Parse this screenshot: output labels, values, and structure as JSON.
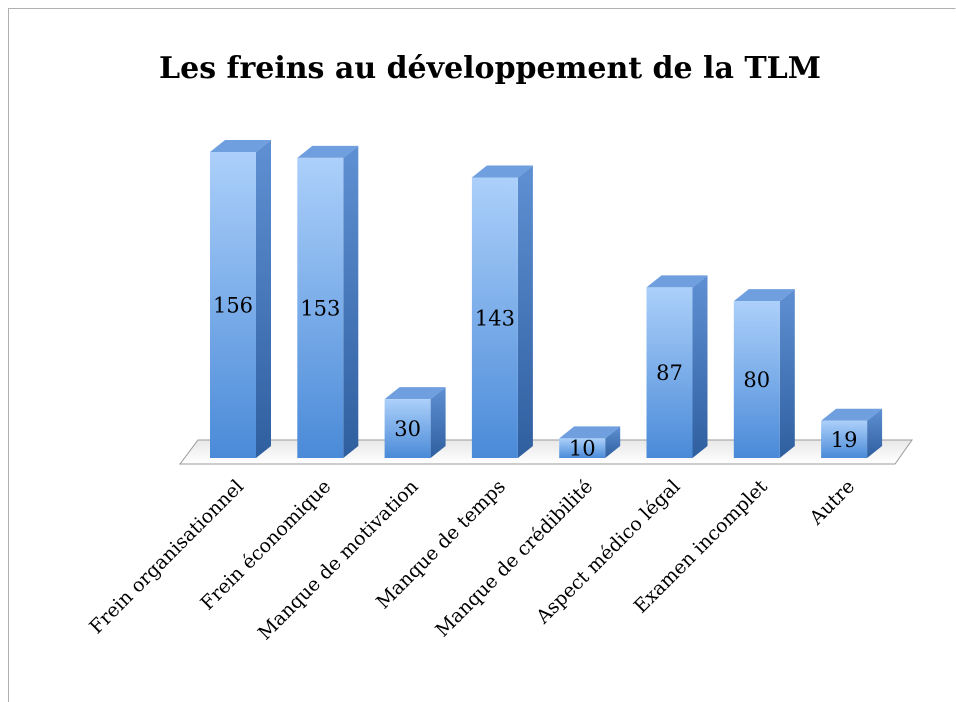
{
  "chart_data": {
    "type": "bar",
    "title": "Les freins au développement de la TLM",
    "categories": [
      "Frein organisationnel",
      "Frein économique",
      "Manque de motivation",
      "Manque de temps",
      "Manque de crédibilité",
      "Aspect médico légal",
      "Examen incomplet",
      "Autre"
    ],
    "values": [
      156,
      153,
      30,
      143,
      10,
      87,
      80,
      19
    ],
    "color": "#4a8ad8"
  }
}
